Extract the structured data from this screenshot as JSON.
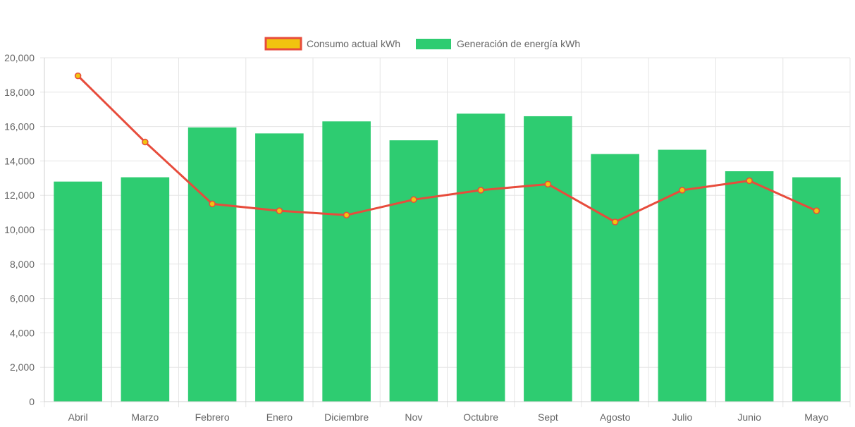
{
  "chart_data": {
    "type": "bar",
    "categories": [
      "Abril",
      "Marzo",
      "Febrero",
      "Enero",
      "Diciembre",
      "Nov",
      "Octubre",
      "Sept",
      "Agosto",
      "Julio",
      "Junio",
      "Mayo"
    ],
    "series": [
      {
        "name": "Consumo actual kWh",
        "type": "line",
        "color": "#e74c3c",
        "point_color": "#f1c40f",
        "values": [
          18950,
          15100,
          11500,
          11100,
          10850,
          11750,
          12300,
          12650,
          10450,
          12300,
          12850,
          11100
        ]
      },
      {
        "name": "Generación de energía kWh",
        "type": "bar",
        "color": "#2ecc71",
        "values": [
          12800,
          13050,
          15950,
          15600,
          16300,
          15200,
          16750,
          16600,
          14400,
          14650,
          13400,
          13050
        ]
      }
    ],
    "ylim": [
      0,
      20000
    ],
    "y_ticks": [
      "0",
      "2,000",
      "4,000",
      "6,000",
      "8,000",
      "10,000",
      "12,000",
      "14,000",
      "16,000",
      "18,000",
      "20,000"
    ],
    "grid": true,
    "legend_position": "top-center"
  }
}
